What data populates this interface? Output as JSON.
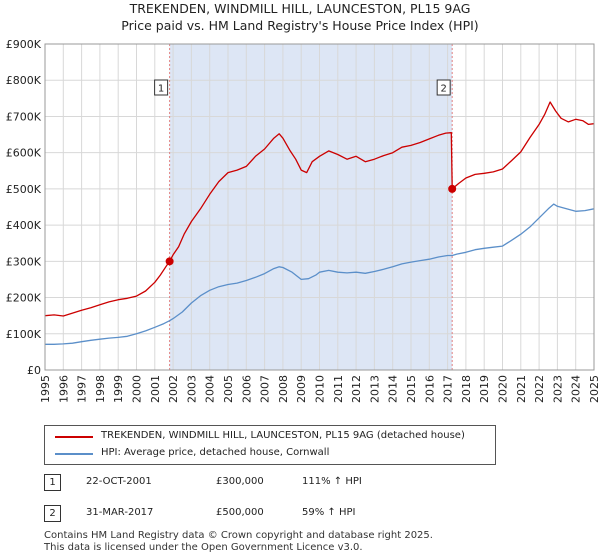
{
  "title_line1": "TREKENDEN, WINDMILL HILL, LAUNCESTON, PL15 9AG",
  "title_line2": "Price paid vs. HM Land Registry's House Price Index (HPI)",
  "colors": {
    "property": "#cc0000",
    "hpi": "#5b8fc9",
    "shade": "#dde6f5",
    "marker_line": "#e08080",
    "grid": "#d8d8d8"
  },
  "chart_data": {
    "type": "line",
    "title": "Price paid vs. HM Land Registry's House Price Index (HPI)",
    "xlabel": "",
    "ylabel": "",
    "xlim": [
      1995,
      2025
    ],
    "ylim": [
      0,
      900000
    ],
    "x_ticks": [
      "1995",
      "1996",
      "1997",
      "1998",
      "1999",
      "2000",
      "2001",
      "2002",
      "2003",
      "2004",
      "2005",
      "2006",
      "2007",
      "2008",
      "2009",
      "2010",
      "2011",
      "2012",
      "2013",
      "2014",
      "2015",
      "2016",
      "2017",
      "2018",
      "2019",
      "2020",
      "2021",
      "2022",
      "2023",
      "2024",
      "2025"
    ],
    "y_ticks": [
      {
        "value": 0,
        "label": "£0"
      },
      {
        "value": 100000,
        "label": "£100K"
      },
      {
        "value": 200000,
        "label": "£200K"
      },
      {
        "value": 300000,
        "label": "£300K"
      },
      {
        "value": 400000,
        "label": "£400K"
      },
      {
        "value": 500000,
        "label": "£500K"
      },
      {
        "value": 600000,
        "label": "£600K"
      },
      {
        "value": 700000,
        "label": "£700K"
      },
      {
        "value": 800000,
        "label": "£800K"
      },
      {
        "value": 900000,
        "label": "£900K"
      }
    ],
    "shaded_period": [
      2001.81,
      2017.25
    ],
    "series": [
      {
        "name": "TREKENDEN, WINDMILL HILL, LAUNCESTON, PL15 9AG (detached house)",
        "color": "#cc0000",
        "points": [
          [
            1995.0,
            150000
          ],
          [
            1995.5,
            152000
          ],
          [
            1996.0,
            149000
          ],
          [
            1996.5,
            157000
          ],
          [
            1997.0,
            165000
          ],
          [
            1997.5,
            172000
          ],
          [
            1998.0,
            180000
          ],
          [
            1998.5,
            188000
          ],
          [
            1999.0,
            194000
          ],
          [
            1999.5,
            198000
          ],
          [
            2000.0,
            204000
          ],
          [
            2000.5,
            218000
          ],
          [
            2001.0,
            242000
          ],
          [
            2001.3,
            262000
          ],
          [
            2001.6,
            285000
          ],
          [
            2001.81,
            300000
          ],
          [
            2002.0,
            318000
          ],
          [
            2002.3,
            340000
          ],
          [
            2002.6,
            375000
          ],
          [
            2003.0,
            410000
          ],
          [
            2003.5,
            445000
          ],
          [
            2004.0,
            485000
          ],
          [
            2004.5,
            520000
          ],
          [
            2005.0,
            545000
          ],
          [
            2005.5,
            552000
          ],
          [
            2006.0,
            562000
          ],
          [
            2006.5,
            590000
          ],
          [
            2007.0,
            610000
          ],
          [
            2007.5,
            640000
          ],
          [
            2007.8,
            652000
          ],
          [
            2008.0,
            640000
          ],
          [
            2008.4,
            605000
          ],
          [
            2008.7,
            582000
          ],
          [
            2009.0,
            552000
          ],
          [
            2009.3,
            545000
          ],
          [
            2009.6,
            575000
          ],
          [
            2010.0,
            590000
          ],
          [
            2010.5,
            605000
          ],
          [
            2011.0,
            595000
          ],
          [
            2011.5,
            582000
          ],
          [
            2012.0,
            590000
          ],
          [
            2012.5,
            575000
          ],
          [
            2013.0,
            582000
          ],
          [
            2013.5,
            592000
          ],
          [
            2014.0,
            600000
          ],
          [
            2014.5,
            615000
          ],
          [
            2015.0,
            620000
          ],
          [
            2015.5,
            628000
          ],
          [
            2016.0,
            638000
          ],
          [
            2016.5,
            648000
          ],
          [
            2016.9,
            654000
          ],
          [
            2017.2,
            655000
          ],
          [
            2017.25,
            500000
          ],
          [
            2017.6,
            515000
          ],
          [
            2018.0,
            530000
          ],
          [
            2018.5,
            540000
          ],
          [
            2019.0,
            543000
          ],
          [
            2019.5,
            547000
          ],
          [
            2020.0,
            555000
          ],
          [
            2020.5,
            578000
          ],
          [
            2021.0,
            602000
          ],
          [
            2021.5,
            642000
          ],
          [
            2022.0,
            678000
          ],
          [
            2022.3,
            705000
          ],
          [
            2022.6,
            740000
          ],
          [
            2022.9,
            715000
          ],
          [
            2023.2,
            695000
          ],
          [
            2023.6,
            685000
          ],
          [
            2024.0,
            692000
          ],
          [
            2024.4,
            688000
          ],
          [
            2024.7,
            678000
          ],
          [
            2025.0,
            680000
          ]
        ]
      },
      {
        "name": "HPI: Average price, detached house, Cornwall",
        "color": "#5b8fc9",
        "points": [
          [
            1995.0,
            71000
          ],
          [
            1995.5,
            71000
          ],
          [
            1996.0,
            72000
          ],
          [
            1996.5,
            74000
          ],
          [
            1997.0,
            78000
          ],
          [
            1997.5,
            82000
          ],
          [
            1998.0,
            85000
          ],
          [
            1998.5,
            88000
          ],
          [
            1999.0,
            90000
          ],
          [
            1999.5,
            93000
          ],
          [
            2000.0,
            100000
          ],
          [
            2000.5,
            108000
          ],
          [
            2001.0,
            118000
          ],
          [
            2001.5,
            128000
          ],
          [
            2001.81,
            136000
          ],
          [
            2002.0,
            142000
          ],
          [
            2002.5,
            160000
          ],
          [
            2003.0,
            185000
          ],
          [
            2003.5,
            205000
          ],
          [
            2004.0,
            220000
          ],
          [
            2004.5,
            230000
          ],
          [
            2005.0,
            236000
          ],
          [
            2005.5,
            240000
          ],
          [
            2006.0,
            247000
          ],
          [
            2006.5,
            256000
          ],
          [
            2007.0,
            266000
          ],
          [
            2007.5,
            280000
          ],
          [
            2007.8,
            285000
          ],
          [
            2008.0,
            283000
          ],
          [
            2008.5,
            270000
          ],
          [
            2009.0,
            250000
          ],
          [
            2009.4,
            252000
          ],
          [
            2009.8,
            262000
          ],
          [
            2010.0,
            270000
          ],
          [
            2010.5,
            275000
          ],
          [
            2011.0,
            270000
          ],
          [
            2011.5,
            268000
          ],
          [
            2012.0,
            270000
          ],
          [
            2012.5,
            267000
          ],
          [
            2013.0,
            272000
          ],
          [
            2013.5,
            278000
          ],
          [
            2014.0,
            285000
          ],
          [
            2014.5,
            293000
          ],
          [
            2015.0,
            298000
          ],
          [
            2015.5,
            302000
          ],
          [
            2016.0,
            306000
          ],
          [
            2016.5,
            312000
          ],
          [
            2017.0,
            316000
          ],
          [
            2017.25,
            316000
          ],
          [
            2017.5,
            320000
          ],
          [
            2018.0,
            325000
          ],
          [
            2018.5,
            332000
          ],
          [
            2019.0,
            336000
          ],
          [
            2019.5,
            339000
          ],
          [
            2020.0,
            342000
          ],
          [
            2020.5,
            358000
          ],
          [
            2021.0,
            375000
          ],
          [
            2021.5,
            395000
          ],
          [
            2022.0,
            420000
          ],
          [
            2022.5,
            445000
          ],
          [
            2022.8,
            458000
          ],
          [
            2023.0,
            452000
          ],
          [
            2023.5,
            445000
          ],
          [
            2024.0,
            438000
          ],
          [
            2024.5,
            440000
          ],
          [
            2025.0,
            445000
          ]
        ]
      }
    ],
    "sales": [
      {
        "label": "1",
        "x": 2001.81,
        "value": 300000
      },
      {
        "label": "2",
        "x": 2017.25,
        "value": 500000
      }
    ]
  },
  "legend": {
    "property_label": "TREKENDEN, WINDMILL HILL, LAUNCESTON, PL15 9AG (detached house)",
    "hpi_label": "HPI: Average price, detached house, Cornwall"
  },
  "sales_table": [
    {
      "num": "1",
      "date": "22-OCT-2001",
      "price": "£300,000",
      "hpi": "111% ↑ HPI"
    },
    {
      "num": "2",
      "date": "31-MAR-2017",
      "price": "£500,000",
      "hpi": "59% ↑ HPI"
    }
  ],
  "footer": {
    "line1": "Contains HM Land Registry data © Crown copyright and database right 2025.",
    "line2": "This data is licensed under the Open Government Licence v3.0."
  }
}
